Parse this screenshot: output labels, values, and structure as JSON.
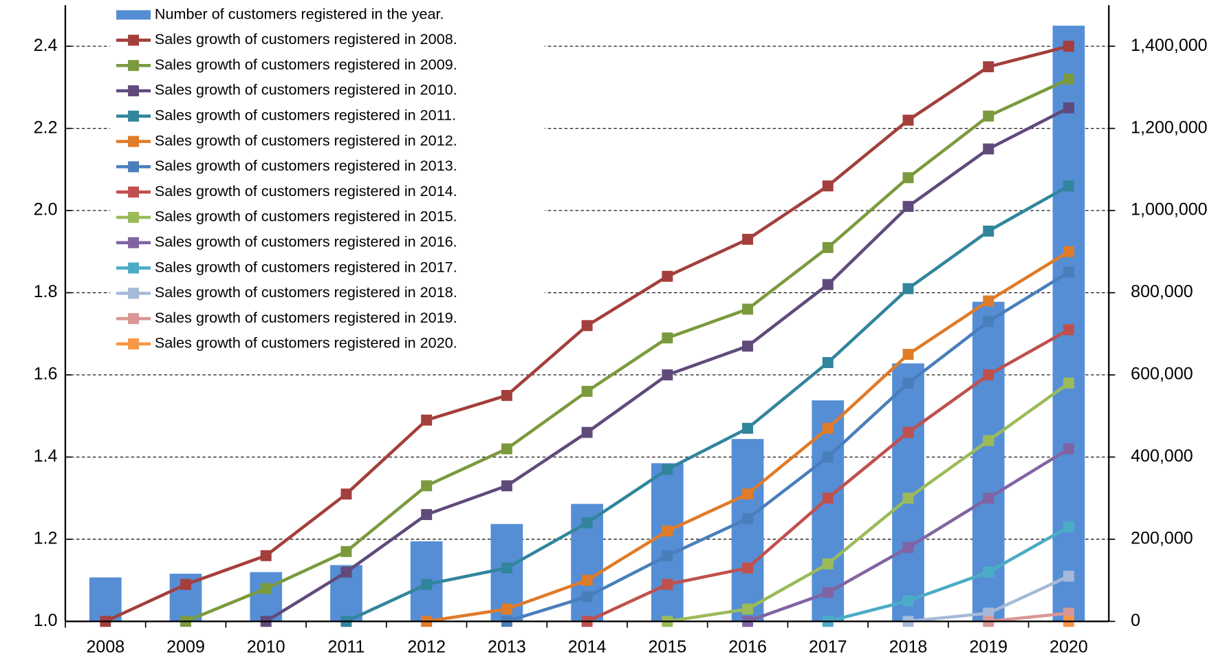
{
  "chart_data": {
    "type": "combo",
    "categories": [
      "2008",
      "2009",
      "2010",
      "2011",
      "2012",
      "2013",
      "2014",
      "2015",
      "2016",
      "2017",
      "2018",
      "2019",
      "2020"
    ],
    "ylim": [
      1.0,
      2.5
    ],
    "yticks": [
      {
        "value": 1.0,
        "label": "1.0"
      },
      1.2,
      1.4,
      1.6,
      1.8,
      {
        "value": 2.0,
        "label": "2.0"
      },
      2.2,
      2.4
    ],
    "y2lim": [
      0,
      1500000
    ],
    "y2ticks": [
      0,
      {
        "value": 200000,
        "label": "200,000"
      },
      {
        "value": 400000,
        "label": "400,000"
      },
      {
        "value": 600000,
        "label": "600,000"
      },
      {
        "value": 800000,
        "label": "800,000"
      },
      {
        "value": 1000000,
        "label": "1,000,000"
      },
      {
        "value": 1200000,
        "label": "1,200,000"
      },
      {
        "value": 1400000,
        "label": "1,400,000"
      }
    ],
    "grid": true,
    "legend": "upper left",
    "series": [
      {
        "name": "Number of customers registered in the year.",
        "type": "bar",
        "axis": "y2",
        "color": "#558ed5",
        "values": [
          107000,
          116000,
          120000,
          137000,
          195000,
          237000,
          286000,
          385000,
          444000,
          538000,
          628000,
          778000,
          1450000
        ]
      },
      {
        "name": "Sales growth of customers registered in 2008.",
        "type": "line",
        "color": "#a33f3c",
        "values": [
          1.0,
          1.09,
          1.16,
          1.31,
          1.49,
          1.55,
          1.72,
          1.84,
          1.93,
          2.06,
          2.22,
          2.35,
          2.4
        ]
      },
      {
        "name": "Sales growth of customers registered in 2009.",
        "type": "line",
        "color": "#7b9a3d",
        "values": [
          null,
          1.0,
          1.08,
          1.17,
          1.33,
          1.42,
          1.56,
          1.69,
          1.76,
          1.91,
          2.08,
          2.23,
          2.32
        ]
      },
      {
        "name": "Sales growth of customers registered in 2010.",
        "type": "line",
        "color": "#604a7b",
        "values": [
          null,
          null,
          1.0,
          1.12,
          1.26,
          1.33,
          1.46,
          1.6,
          1.67,
          1.82,
          2.01,
          2.15,
          2.25
        ]
      },
      {
        "name": "Sales growth of customers registered in 2011.",
        "type": "line",
        "color": "#31859c",
        "values": [
          null,
          null,
          null,
          1.0,
          1.09,
          1.13,
          1.24,
          1.37,
          1.47,
          1.63,
          1.81,
          1.95,
          2.06
        ]
      },
      {
        "name": "Sales growth of customers registered in 2012.",
        "type": "line",
        "color": "#e07b29",
        "values": [
          null,
          null,
          null,
          null,
          1.0,
          1.03,
          1.1,
          1.22,
          1.31,
          1.47,
          1.65,
          1.78,
          1.9
        ]
      },
      {
        "name": "Sales growth of customers registered in 2013.",
        "type": "line",
        "color": "#4a7ebb",
        "values": [
          null,
          null,
          null,
          null,
          null,
          1.0,
          1.06,
          1.16,
          1.25,
          1.4,
          1.58,
          1.73,
          1.85
        ]
      },
      {
        "name": "Sales growth of customers registered in 2014.",
        "type": "line",
        "color": "#c0504d",
        "values": [
          null,
          null,
          null,
          null,
          null,
          null,
          1.0,
          1.09,
          1.13,
          1.3,
          1.46,
          1.6,
          1.71
        ]
      },
      {
        "name": "Sales growth of customers registered in 2015.",
        "type": "line",
        "color": "#9bbb59",
        "values": [
          null,
          null,
          null,
          null,
          null,
          null,
          null,
          1.0,
          1.03,
          1.14,
          1.3,
          1.44,
          1.58
        ]
      },
      {
        "name": "Sales growth of customers registered in 2016.",
        "type": "line",
        "color": "#8064a2",
        "values": [
          null,
          null,
          null,
          null,
          null,
          null,
          null,
          null,
          1.0,
          1.07,
          1.18,
          1.3,
          1.42
        ]
      },
      {
        "name": "Sales growth of customers registered in 2017.",
        "type": "line",
        "color": "#4bacc6",
        "values": [
          null,
          null,
          null,
          null,
          null,
          null,
          null,
          null,
          null,
          1.0,
          1.05,
          1.12,
          1.23
        ]
      },
      {
        "name": "Sales growth of customers registered in 2018.",
        "type": "line",
        "color": "#a6b9d8",
        "values": [
          null,
          null,
          null,
          null,
          null,
          null,
          null,
          null,
          null,
          null,
          1.0,
          1.02,
          1.11
        ]
      },
      {
        "name": "Sales growth of customers registered in 2019.",
        "type": "line",
        "color": "#d99694",
        "values": [
          null,
          null,
          null,
          null,
          null,
          null,
          null,
          null,
          null,
          null,
          null,
          1.0,
          1.02
        ]
      },
      {
        "name": "Sales growth of customers registered in 2020.",
        "type": "line",
        "color": "#f79646",
        "values": [
          null,
          null,
          null,
          null,
          null,
          null,
          null,
          null,
          null,
          null,
          null,
          null,
          1.0
        ]
      }
    ]
  }
}
